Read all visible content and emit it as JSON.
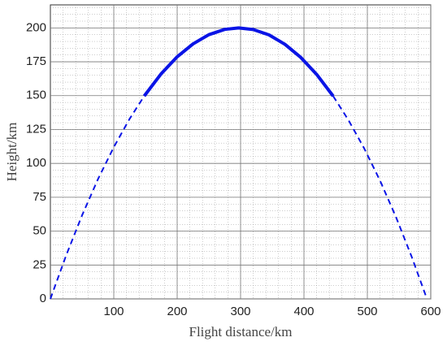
{
  "chart_data": {
    "type": "line",
    "x_label": "Flight distance/km",
    "y_label": "Height/km",
    "xlim": [
      0,
      600
    ],
    "ylim": [
      0,
      217
    ],
    "xticks": [
      100,
      200,
      300,
      400,
      500,
      600
    ],
    "yticks": [
      0,
      25,
      50,
      75,
      100,
      125,
      150,
      175,
      200
    ],
    "grid": true,
    "minor_grid_step": {
      "x": 20,
      "y": 5
    },
    "series": [
      {
        "color": "#0a14e6",
        "style": "dashed",
        "x": [
          0,
          25,
          50,
          75,
          100,
          125,
          148
        ],
        "values": [
          0,
          32.3,
          61.7,
          88.3,
          112.0,
          132.9,
          149.7
        ]
      },
      {
        "color": "#0a14e6",
        "style": "solid",
        "x": [
          148,
          175,
          200,
          225,
          250,
          275,
          297,
          320,
          345,
          370,
          395,
          420,
          446
        ],
        "values": [
          149.7,
          166.3,
          178.7,
          188.2,
          195.0,
          198.9,
          200,
          198.8,
          194.8,
          187.9,
          178.2,
          165.7,
          149.7
        ]
      },
      {
        "color": "#0a14e6",
        "style": "dashed",
        "x": [
          446,
          470,
          495,
          520,
          545,
          570,
          594
        ],
        "values": [
          149.7,
          132.1,
          111.1,
          87.3,
          60.6,
          31.0,
          0
        ]
      }
    ]
  }
}
